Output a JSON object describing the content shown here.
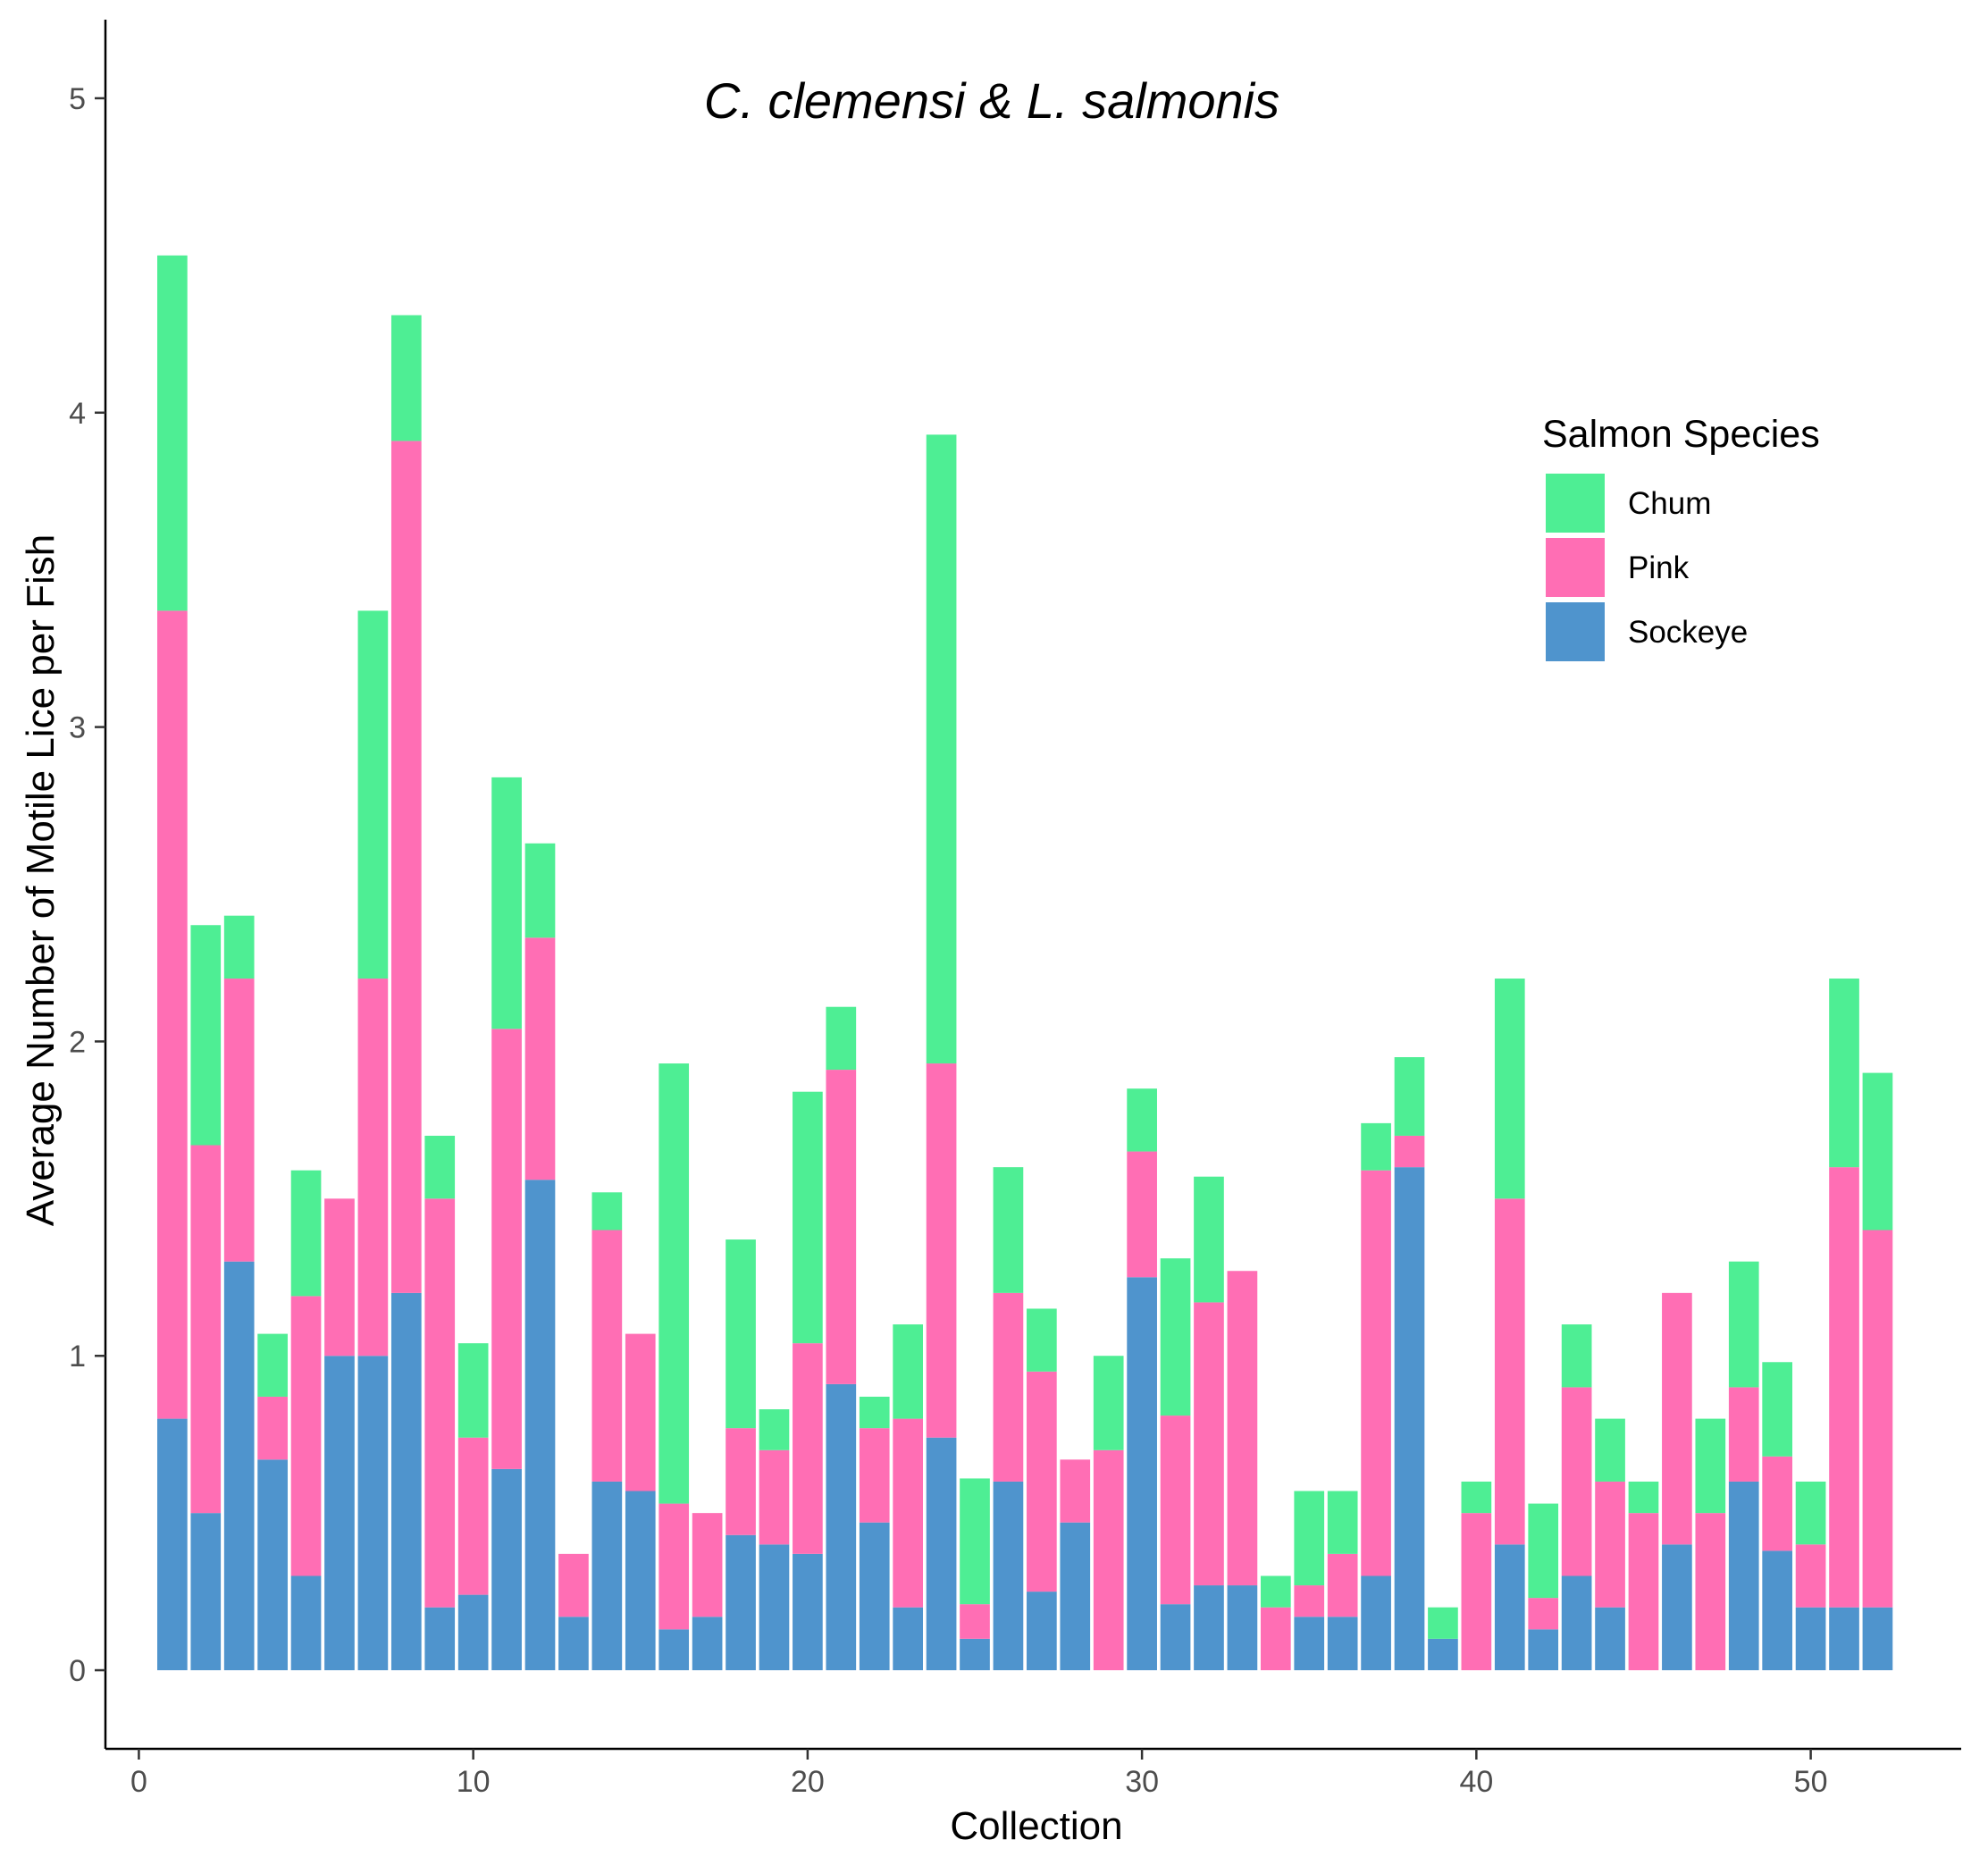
{
  "chart_data": {
    "type": "bar",
    "stacked": true,
    "title": "C. clemensi & L. salmonis",
    "xlabel": "Collection",
    "ylabel": "Average Number of Motile Lice per Fish",
    "xlim": [
      -1,
      54.5
    ],
    "ylim": [
      -0.25,
      5.25
    ],
    "xticks": [
      0,
      10,
      20,
      30,
      40,
      50
    ],
    "yticks": [
      0,
      1,
      2,
      3,
      4,
      5
    ],
    "grid": false,
    "legend": {
      "title": "Salmon Species",
      "position": "right"
    },
    "x": [
      1,
      2,
      3,
      4,
      5,
      6,
      7,
      8,
      9,
      10,
      11,
      12,
      13,
      14,
      15,
      16,
      17,
      18,
      19,
      20,
      21,
      22,
      23,
      24,
      25,
      26,
      27,
      28,
      29,
      30,
      31,
      32,
      33,
      34,
      35,
      36,
      37,
      38,
      39,
      40,
      41,
      42,
      43,
      44,
      45,
      46,
      47,
      48,
      49,
      50,
      51,
      52
    ],
    "series": [
      {
        "name": "Sockeye",
        "color": "#4f94cd",
        "values": [
          0.8,
          0.5,
          1.3,
          0.67,
          0.3,
          1.0,
          1.0,
          1.2,
          0.2,
          0.24,
          0.64,
          1.56,
          0.17,
          0.6,
          0.57,
          0.13,
          0.17,
          0.43,
          0.4,
          0.37,
          0.91,
          0.47,
          0.2,
          0.74,
          0.1,
          0.6,
          0.25,
          0.47,
          0,
          1.25,
          0.21,
          0.27,
          0.27,
          0,
          0.17,
          0.17,
          0.3,
          1.6,
          0.1,
          0,
          0.4,
          0.13,
          0.3,
          0.2,
          0,
          0.4,
          0,
          0.6,
          0.38,
          0.2,
          0.2,
          0.2
        ]
      },
      {
        "name": "Pink",
        "color": "#ff6eb4",
        "values": [
          2.57,
          1.17,
          0.9,
          0.2,
          0.89,
          0.5,
          1.2,
          2.71,
          1.3,
          0.5,
          1.4,
          0.77,
          0.2,
          0.8,
          0.5,
          0.4,
          0.33,
          0.34,
          0.3,
          0.67,
          1.0,
          0.3,
          0.6,
          1.19,
          0.11,
          0.6,
          0.7,
          0.2,
          0.7,
          0.4,
          0.6,
          0.9,
          1.0,
          0.2,
          0.1,
          0.2,
          1.29,
          0.1,
          0,
          0.5,
          1.1,
          0.1,
          0.6,
          0.4,
          0.5,
          0.8,
          0.5,
          0.3,
          0.3,
          0.2,
          1.4,
          1.2
        ]
      },
      {
        "name": "Chum",
        "color": "#4eee94",
        "values": [
          1.13,
          0.7,
          0.2,
          0.2,
          0.4,
          0,
          1.17,
          0.4,
          0.2,
          0.3,
          0.8,
          0.3,
          0,
          0.12,
          0,
          1.4,
          0,
          0.6,
          0.13,
          0.8,
          0.2,
          0.1,
          0.3,
          2.0,
          0.4,
          0.4,
          0.2,
          0,
          0.3,
          0.2,
          0.5,
          0.4,
          0,
          0.1,
          0.3,
          0.2,
          0.15,
          0.25,
          0.1,
          0.1,
          0.7,
          0.3,
          0.2,
          0.2,
          0.1,
          0,
          0.3,
          0.4,
          0.3,
          0.2,
          0.6,
          0.5
        ]
      }
    ]
  }
}
